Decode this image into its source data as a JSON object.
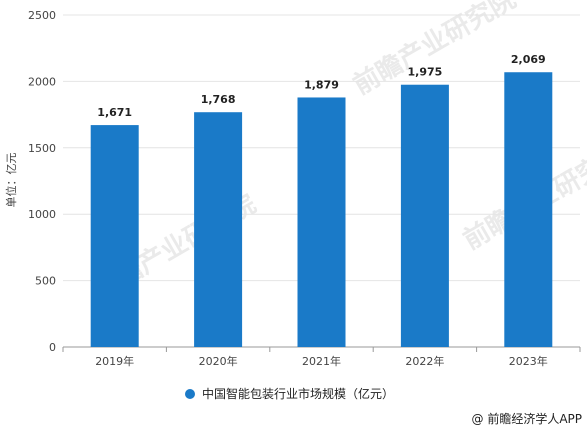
{
  "chart_data": {
    "type": "bar",
    "categories": [
      "2019年",
      "2020年",
      "2021年",
      "2022年",
      "2023年"
    ],
    "series": [
      {
        "name": "中国智能包装行业市场规模（亿元）",
        "values": [
          1671,
          1768,
          1879,
          1975,
          2069
        ]
      }
    ],
    "data_labels": [
      "1,671",
      "1,768",
      "1,879",
      "1,975",
      "2,069"
    ],
    "ylabel": "单位：亿元",
    "ylim": [
      0,
      2500
    ],
    "yticks": [
      0,
      500,
      1000,
      1500,
      2000,
      2500
    ],
    "grid": true,
    "legend_position": "bottom",
    "bar_color": "#1a7ac8"
  },
  "watermark": "前瞻产业研究院",
  "credit": "@ 前瞻经济学人APP"
}
